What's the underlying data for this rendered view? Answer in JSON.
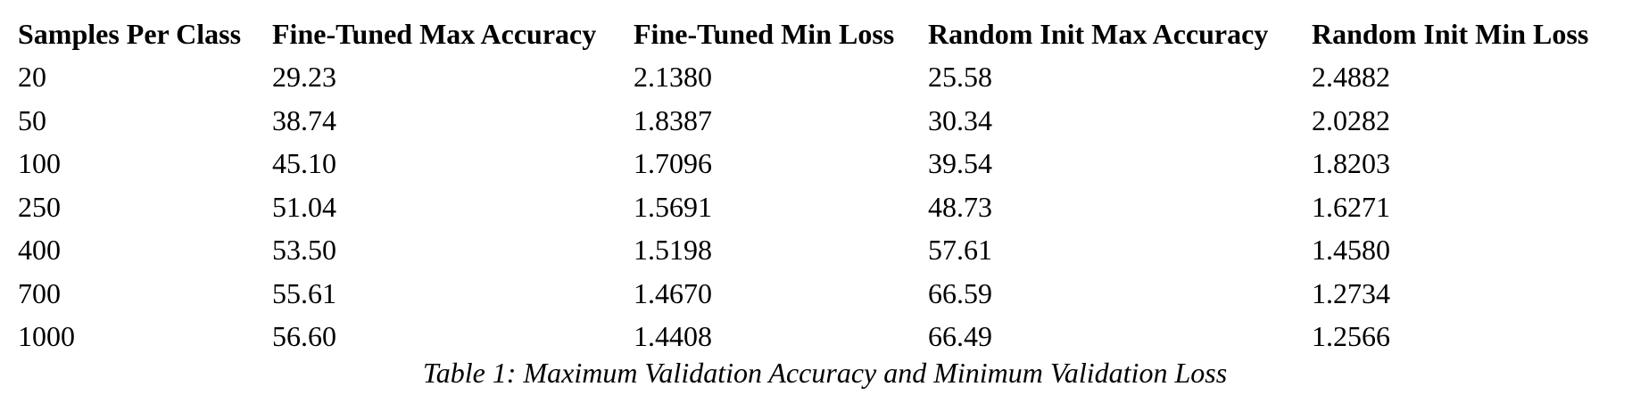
{
  "table": {
    "headers": [
      "Samples Per Class",
      "Fine-Tuned Max Accuracy",
      "Fine-Tuned Min Loss",
      "Random Init Max Accuracy",
      "Random Init Min Loss"
    ],
    "rows": [
      [
        "20",
        "29.23",
        "2.1380",
        "25.58",
        "2.4882"
      ],
      [
        "50",
        "38.74",
        "1.8387",
        "30.34",
        "2.0282"
      ],
      [
        "100",
        "45.10",
        "1.7096",
        "39.54",
        "1.8203"
      ],
      [
        "250",
        "51.04",
        "1.5691",
        "48.73",
        "1.6271"
      ],
      [
        "400",
        "53.50",
        "1.5198",
        "57.61",
        "1.4580"
      ],
      [
        "700",
        "55.61",
        "1.4670",
        "66.59",
        "1.2734"
      ],
      [
        "1000",
        "56.60",
        "1.4408",
        "66.49",
        "1.2566"
      ]
    ],
    "caption": "Table 1: Maximum Validation Accuracy and Minimum Validation Loss"
  }
}
